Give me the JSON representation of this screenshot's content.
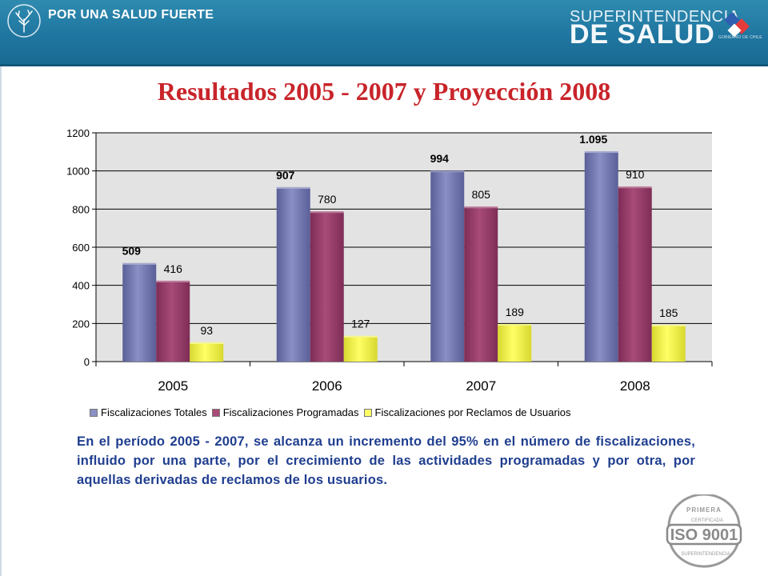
{
  "header": {
    "brand": "POR UNA SALUD FUERTE",
    "superintendencia_top": "SUPERINTENDENCIA",
    "superintendencia_bottom": "DE SALUD",
    "gobierno": "GOBIERNO DE CHILE"
  },
  "slide": {
    "title": "Resultados 2005 - 2007 y Proyección  2008",
    "description": "En el período 2005 - 2007, se alcanza un incremento del 95% en el número de fiscalizaciones, influido por una parte, por el crecimiento de las actividades programadas y por otra, por aquellas derivadas de reclamos de los usuarios."
  },
  "iso_badge": {
    "text_top": "PRIMERA",
    "text_mid": "CERTIFICADA",
    "label": "ISO 9001",
    "text_bottom": "SUPERINTENDENCIA"
  },
  "colors": {
    "header": "#1f76a0",
    "title": "#c8242a",
    "description": "#1f3e8f",
    "series": [
      "#8a8fc4",
      "#a84b78",
      "#ffff66"
    ],
    "plot_background": "#e3e3e3"
  },
  "chart_data": {
    "type": "bar",
    "categories": [
      "2005",
      "2006",
      "2007",
      "2008"
    ],
    "series": [
      {
        "name": "Fiscalizaciones Totales",
        "values": [
          509,
          907,
          994,
          1095
        ],
        "labels": [
          "509",
          "907",
          "994",
          "1.095"
        ]
      },
      {
        "name": "Fiscalizaciones Programadas",
        "values": [
          416,
          780,
          805,
          910
        ],
        "labels": [
          "416",
          "780",
          "805",
          "910"
        ]
      },
      {
        "name": "Fiscalizaciones por Reclamos de Usuarios",
        "values": [
          93,
          127,
          189,
          185
        ],
        "labels": [
          "93",
          "127",
          "189",
          "185"
        ]
      }
    ],
    "yticks": [
      "0",
      "200",
      "400",
      "600",
      "800",
      "1000",
      "1200"
    ],
    "ylim": [
      0,
      1200
    ],
    "grid": true,
    "legend_position": "bottom"
  }
}
